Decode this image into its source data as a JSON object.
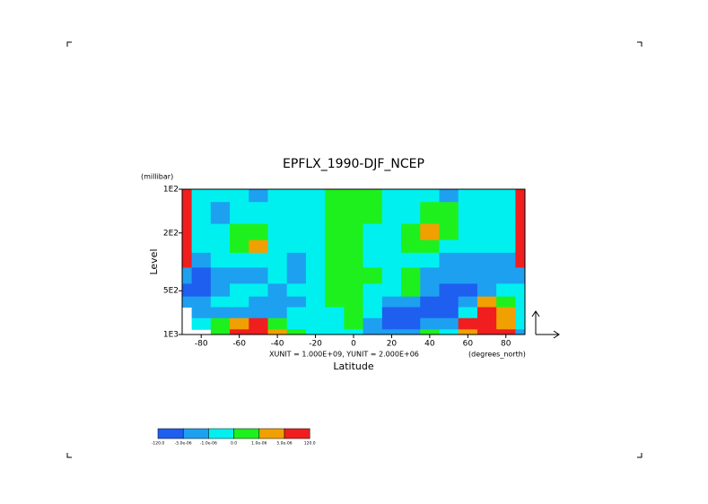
{
  "chart_data": {
    "type": "contour",
    "title": "EPFLX_1990-DJF_NCEP",
    "y_unit_label": "(millibar)",
    "ylabel": "Level",
    "xlabel": "Latitude",
    "x_unit_label": "(degrees_north)",
    "vector_note": "XUNIT = 1.000E+09, YUNIT = 2.000E+06",
    "yscale": "log",
    "xlim": [
      -90,
      90
    ],
    "ylim": [
      1000,
      100
    ],
    "xticks": [
      -80,
      -60,
      -40,
      -20,
      0,
      20,
      40,
      60,
      80
    ],
    "yticks": [
      {
        "value": 100,
        "label": "1E2"
      },
      {
        "value": 200,
        "label": "2E2"
      },
      {
        "value": 500,
        "label": "5E2"
      },
      {
        "value": 1000,
        "label": "1E3"
      }
    ],
    "x": [
      -90,
      -80,
      -70,
      -60,
      -50,
      -40,
      -30,
      -20,
      -10,
      0,
      10,
      20,
      30,
      40,
      50,
      60,
      70,
      80,
      90
    ],
    "y": [
      100,
      150,
      200,
      250,
      300,
      400,
      500,
      600,
      700,
      850,
      1000
    ],
    "values": [
      [
        1e-05,
        -5e-07,
        -5e-07,
        -5e-07,
        -3e-06,
        -5e-07,
        -5e-07,
        -5e-07,
        5e-07,
        5e-07,
        5e-07,
        -5e-07,
        -5e-07,
        -5e-07,
        -3e-06,
        -5e-07,
        -5e-07,
        -5e-07,
        1e-05
      ],
      [
        1e-05,
        -5e-07,
        -3e-06,
        -5e-07,
        -5e-07,
        -5e-07,
        -5e-07,
        -5e-07,
        5e-07,
        5e-07,
        5e-07,
        -5e-07,
        -5e-07,
        5e-07,
        5e-07,
        -5e-07,
        -5e-07,
        -5e-07,
        1e-05
      ],
      [
        1e-05,
        -5e-07,
        -5e-07,
        5e-07,
        5e-07,
        -5e-07,
        -5e-07,
        -5e-07,
        5e-07,
        5e-07,
        -5e-07,
        -5e-07,
        5e-07,
        3e-06,
        5e-07,
        -5e-07,
        -5e-07,
        -5e-07,
        1e-05
      ],
      [
        1e-05,
        -5e-07,
        -5e-07,
        5e-07,
        3e-06,
        -5e-07,
        -5e-07,
        -5e-07,
        5e-07,
        5e-07,
        -5e-07,
        -5e-07,
        5e-07,
        5e-07,
        -5e-07,
        -5e-07,
        -5e-07,
        -5e-07,
        1e-05
      ],
      [
        1e-05,
        -3e-06,
        -5e-07,
        -5e-07,
        -5e-07,
        -5e-07,
        -3e-06,
        -5e-07,
        5e-07,
        5e-07,
        -5e-07,
        -5e-07,
        -5e-07,
        -5e-07,
        -3e-06,
        -3e-06,
        -3e-06,
        -3e-06,
        1e-05
      ],
      [
        -3e-06,
        -1e-05,
        -3e-06,
        -3e-06,
        -3e-06,
        -5e-07,
        -3e-06,
        -5e-07,
        5e-07,
        5e-07,
        5e-07,
        -5e-07,
        5e-07,
        -3e-06,
        -3e-06,
        -3e-06,
        -3e-06,
        -3e-06,
        -3e-06
      ],
      [
        -1e-05,
        -1e-05,
        -3e-06,
        -5e-07,
        -5e-07,
        -3e-06,
        -5e-07,
        -5e-07,
        5e-07,
        5e-07,
        -5e-07,
        -5e-07,
        5e-07,
        -3e-06,
        -1e-05,
        -1e-05,
        -3e-06,
        -5e-07,
        -5e-07
      ],
      [
        -3e-06,
        -3e-06,
        -5e-07,
        -5e-07,
        -3e-06,
        -3e-06,
        -3e-06,
        -5e-07,
        5e-07,
        5e-07,
        -5e-07,
        -3e-06,
        -3e-06,
        -1e-05,
        -1e-05,
        -3e-06,
        3e-06,
        5e-07,
        -5e-07
      ],
      [
        null,
        -3e-06,
        -3e-06,
        -3e-06,
        -3e-06,
        -3e-06,
        -5e-07,
        -5e-07,
        -5e-07,
        5e-07,
        -5e-07,
        -1e-05,
        -1e-05,
        -1e-05,
        -1e-05,
        -5e-07,
        1e-05,
        3e-06,
        -5e-07
      ],
      [
        null,
        -5e-07,
        5e-07,
        3e-06,
        1e-05,
        5e-07,
        -5e-07,
        -5e-07,
        -5e-07,
        5e-07,
        -3e-06,
        -1e-05,
        -1e-05,
        -3e-06,
        -3e-06,
        1e-05,
        1e-05,
        3e-06,
        -5e-07
      ],
      [
        null,
        null,
        5e-07,
        1e-05,
        1e-05,
        3e-06,
        5e-07,
        -5e-07,
        -5e-07,
        -5e-07,
        -3e-06,
        -3e-06,
        -3e-06,
        5e-07,
        -5e-07,
        3e-06,
        1e-05,
        1e-05,
        -3e-06
      ]
    ],
    "levels": [
      {
        "value": -120,
        "label": "-120.0"
      },
      {
        "value": -5e-06,
        "label": "-5.0e-06"
      },
      {
        "value": -1e-06,
        "label": "-1.0e-06"
      },
      {
        "value": 0,
        "label": "0.0"
      },
      {
        "value": 1e-06,
        "label": "1.0e-06"
      },
      {
        "value": 5e-06,
        "label": "5.0e-06"
      },
      {
        "value": 120,
        "label": "120.0"
      }
    ],
    "colors": [
      "#1e5ff0",
      "#1ea0f0",
      "#00f0f0",
      "#1ef01e",
      "#f0a000",
      "#f01e1e"
    ]
  }
}
